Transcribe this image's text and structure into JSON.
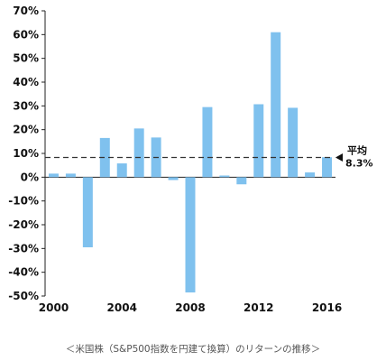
{
  "chart_data": {
    "type": "bar",
    "title": "",
    "xlabel": "",
    "ylabel": "",
    "x": [
      2000,
      2001,
      2002,
      2003,
      2004,
      2005,
      2006,
      2007,
      2008,
      2009,
      2010,
      2011,
      2012,
      2013,
      2014,
      2015,
      2016
    ],
    "values": [
      1.5,
      1.5,
      -29.5,
      16.5,
      5.8,
      20.5,
      16.7,
      -1.2,
      -48.5,
      29.5,
      0.7,
      -3.0,
      30.7,
      61.0,
      29.2,
      2.0,
      8.4
    ],
    "ylim": [
      -50,
      70
    ],
    "yticks": [
      70,
      60,
      50,
      40,
      30,
      20,
      10,
      0,
      -10,
      -20,
      -30,
      -40,
      -50
    ],
    "ytick_labels": [
      "70%",
      "60%",
      "50%",
      "40%",
      "30%",
      "20%",
      "10%",
      "0%",
      "-10%",
      "-20%",
      "-30%",
      "-40%",
      "-50%"
    ],
    "xtick_labels": [
      "2000",
      "2004",
      "2008",
      "2012",
      "2016"
    ],
    "xtick_years": [
      2000,
      2004,
      2008,
      2012,
      2016
    ],
    "average": {
      "value": 8.3,
      "label_line1": "平均",
      "label_line2": "8.3%"
    },
    "bar_color": "#7fc1ee",
    "grid": false
  },
  "caption": "＜米国株（S&P500指数を円建て換算）のリターンの推移＞"
}
